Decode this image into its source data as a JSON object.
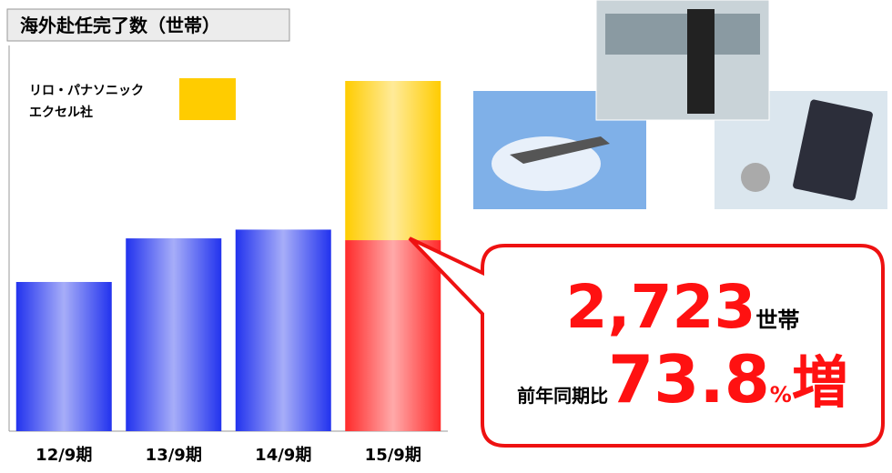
{
  "chart_data": {
    "type": "stacked-bar",
    "title": "海外赴任完了数（世帯）",
    "categories": [
      "12/9期",
      "13/9期",
      "14/9期",
      "15/9期"
    ],
    "series": [
      {
        "colors": [
          "#2233ee",
          "#2233ee",
          "#2233ee",
          "#ff2a2a"
        ],
        "values": [
          1160,
          1499,
          1567,
          1485
        ]
      },
      {
        "name": "リロ・パナソニックエクセル社",
        "color": "#ffcc00",
        "values": [
          null,
          null,
          null,
          1238
        ]
      }
    ],
    "ylim": [
      0,
      2723
    ],
    "callout": {
      "total": "2,723",
      "total_unit": "世帯",
      "prefix": "前年同期比",
      "growth": "73.8",
      "growth_unit": "%",
      "suffix": "増"
    }
  }
}
